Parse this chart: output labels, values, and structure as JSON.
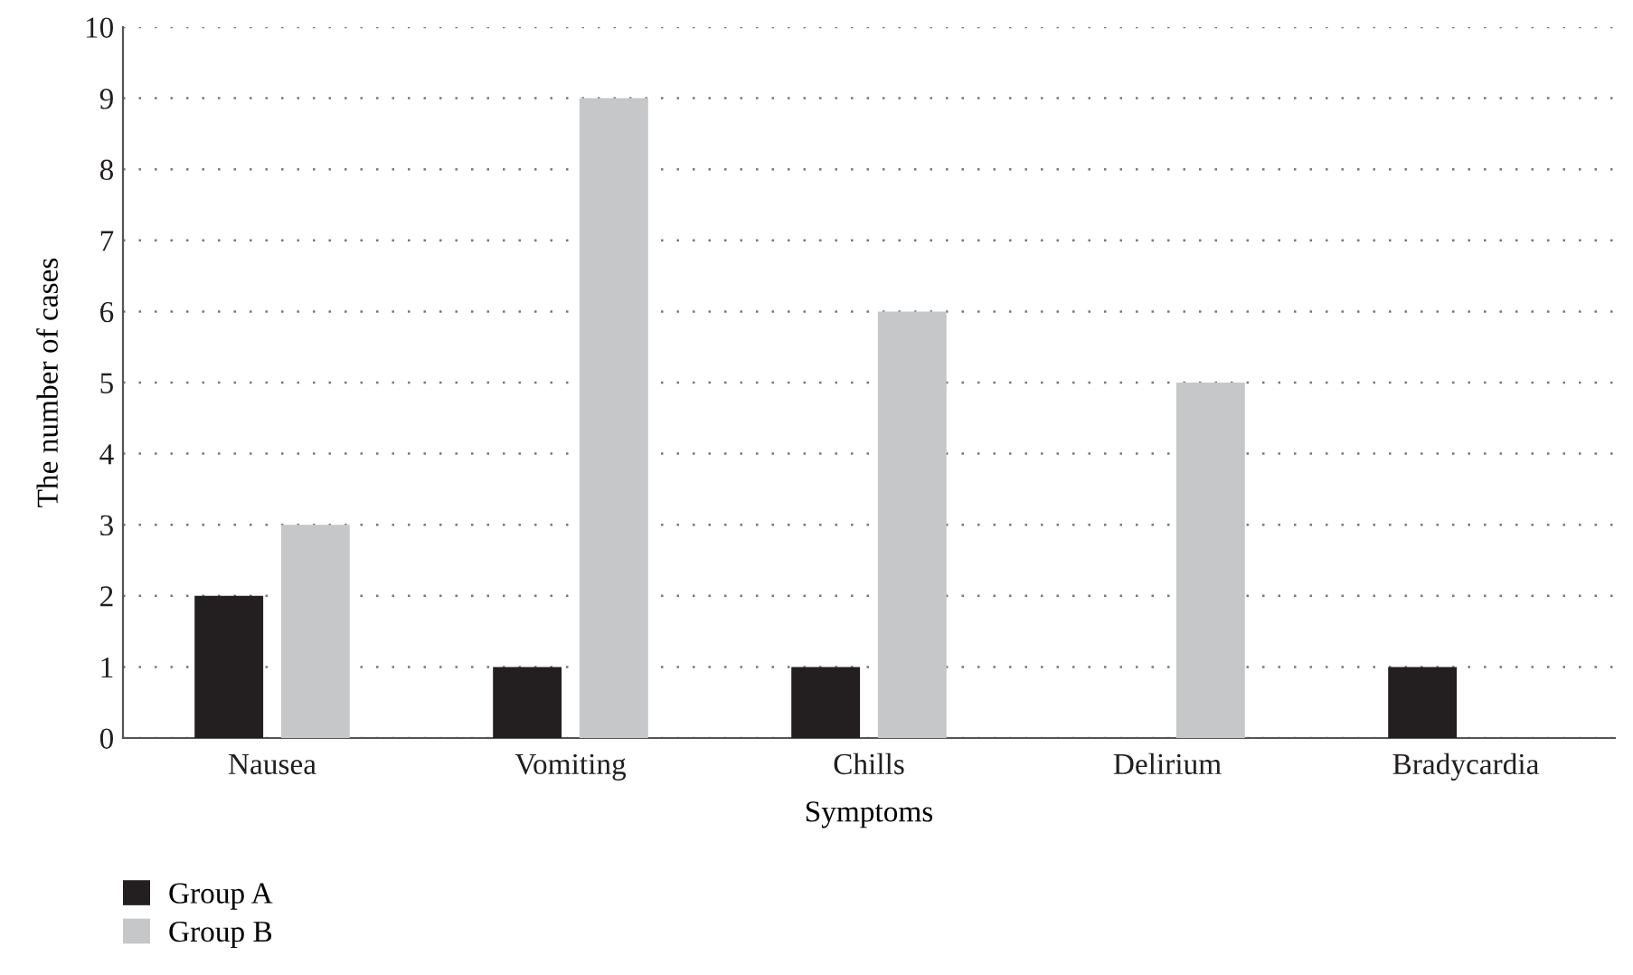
{
  "chart_data": {
    "type": "bar",
    "xlabel": "Symptoms",
    "ylabel": "The number of cases",
    "categories": [
      "Nausea",
      "Vomiting",
      "Chills",
      "Delirium",
      "Bradycardia"
    ],
    "series": [
      {
        "name": "Group A",
        "color": "#231f20",
        "values": [
          2,
          1,
          1,
          0,
          1
        ]
      },
      {
        "name": "Group B",
        "color": "#c6c7c8",
        "values": [
          3,
          9,
          6,
          5,
          0
        ]
      }
    ],
    "ylim": [
      0,
      10
    ],
    "yticks": [
      0,
      1,
      2,
      3,
      4,
      5,
      6,
      7,
      8,
      9,
      10
    ],
    "grid": "y",
    "legend": "bottom left"
  }
}
